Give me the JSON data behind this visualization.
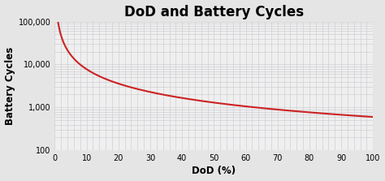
{
  "title": "DoD and Battery Cycles",
  "xlabel": "DoD (%)",
  "ylabel": "Battery Cycles",
  "bg_color": "#e5e5e5",
  "plot_bg_color": "#efefef",
  "grid_color": "#c8c8d0",
  "line_color": "#cc2222",
  "title_fontsize": 12,
  "label_fontsize": 8.5,
  "tick_fontsize": 7,
  "xlim": [
    0,
    100
  ],
  "ylim_log": [
    100,
    100000
  ],
  "x_ticks": [
    0,
    10,
    20,
    30,
    40,
    50,
    60,
    70,
    80,
    90,
    100
  ],
  "y_ticks_log": [
    100,
    1000,
    10000,
    100000
  ],
  "y_tick_labels": [
    "100",
    "1,000",
    "10,000",
    "100,000"
  ],
  "curve_dod_start": 0.8,
  "curve_dod_end": 100,
  "curve_a": 100000,
  "curve_b": 1.11
}
